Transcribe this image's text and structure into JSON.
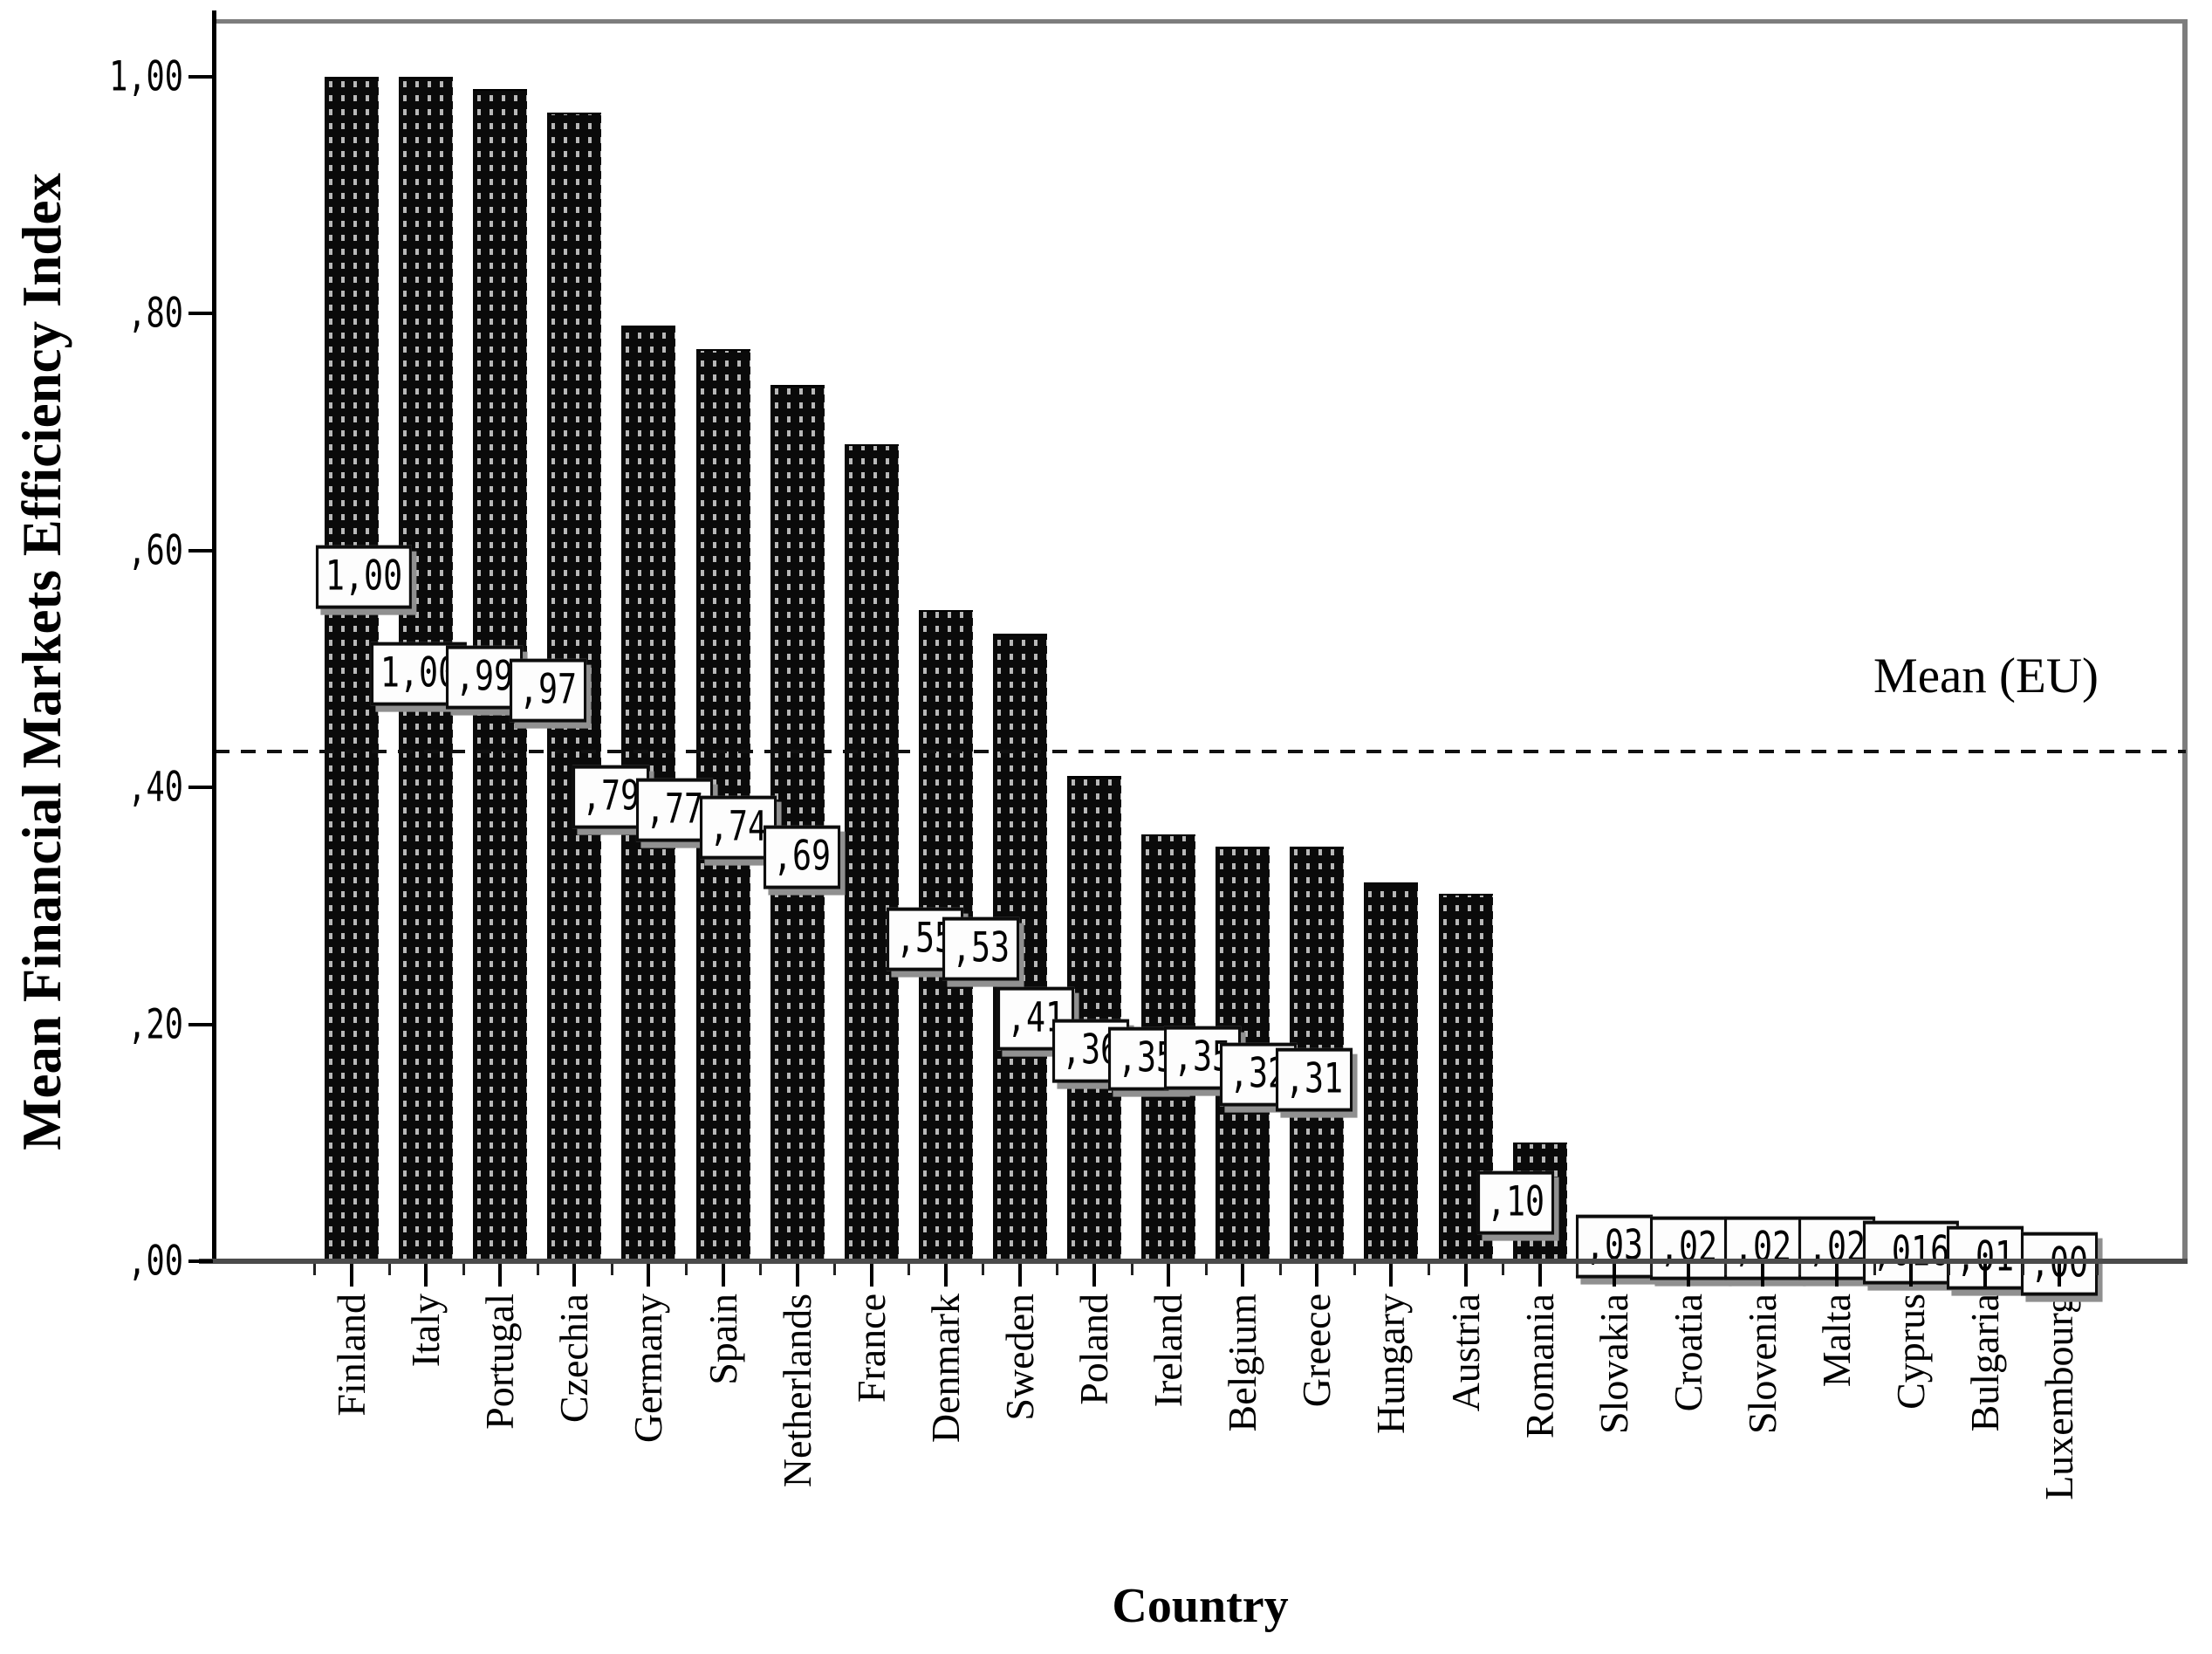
{
  "chart_data": {
    "type": "bar",
    "title": "",
    "xlabel": "Country",
    "ylabel": "Mean Financial Markets Efficiency Index",
    "categories": [
      "Finland",
      "Italy",
      "Portugal",
      "Czechia",
      "Germany",
      "Spain",
      "Netherlands",
      "France",
      "Denmark",
      "Sweden",
      "Poland",
      "Ireland",
      "Belgium",
      "Greece",
      "Hungary",
      "Austria",
      "Romania",
      "Slovakia",
      "Croatia",
      "Slovenia",
      "Malta",
      "Cyprus",
      "Bulgaria",
      "Luxembourg"
    ],
    "values": [
      1.0,
      1.0,
      0.99,
      0.97,
      0.79,
      0.77,
      0.74,
      0.69,
      0.55,
      0.53,
      0.41,
      0.36,
      0.35,
      0.35,
      0.32,
      0.31,
      0.1,
      0.03,
      0.02,
      0.02,
      0.02,
      0.016,
      0.01,
      0.0
    ],
    "bar_value_labels": [
      "1,00",
      "1,00",
      ",99",
      ",97",
      ",79",
      ",77",
      ",74",
      ",69",
      ",55",
      ",53",
      ",41",
      ",36",
      ",35",
      ",35",
      ",32",
      ",31",
      ",10",
      ",03",
      ",02",
      ",02",
      ",02",
      ",016",
      ",01",
      ",00"
    ],
    "y_tick_labels": [
      "1,00",
      ",80",
      ",60",
      ",40",
      ",20",
      ",00"
    ],
    "y_tick_values": [
      1.0,
      0.8,
      0.6,
      0.4,
      0.2,
      0.0
    ],
    "ylim": [
      0,
      1.05
    ],
    "grid": false,
    "legend_position": "none",
    "mean_line": {
      "value": 0.43,
      "label": "Mean (EU)",
      "style": "dashed"
    },
    "bar_color": "#0a0a0a",
    "bar_texture_dot_color": "#b8b8b8",
    "frame_color": "#7d7d7d",
    "decimal_separator": ","
  }
}
